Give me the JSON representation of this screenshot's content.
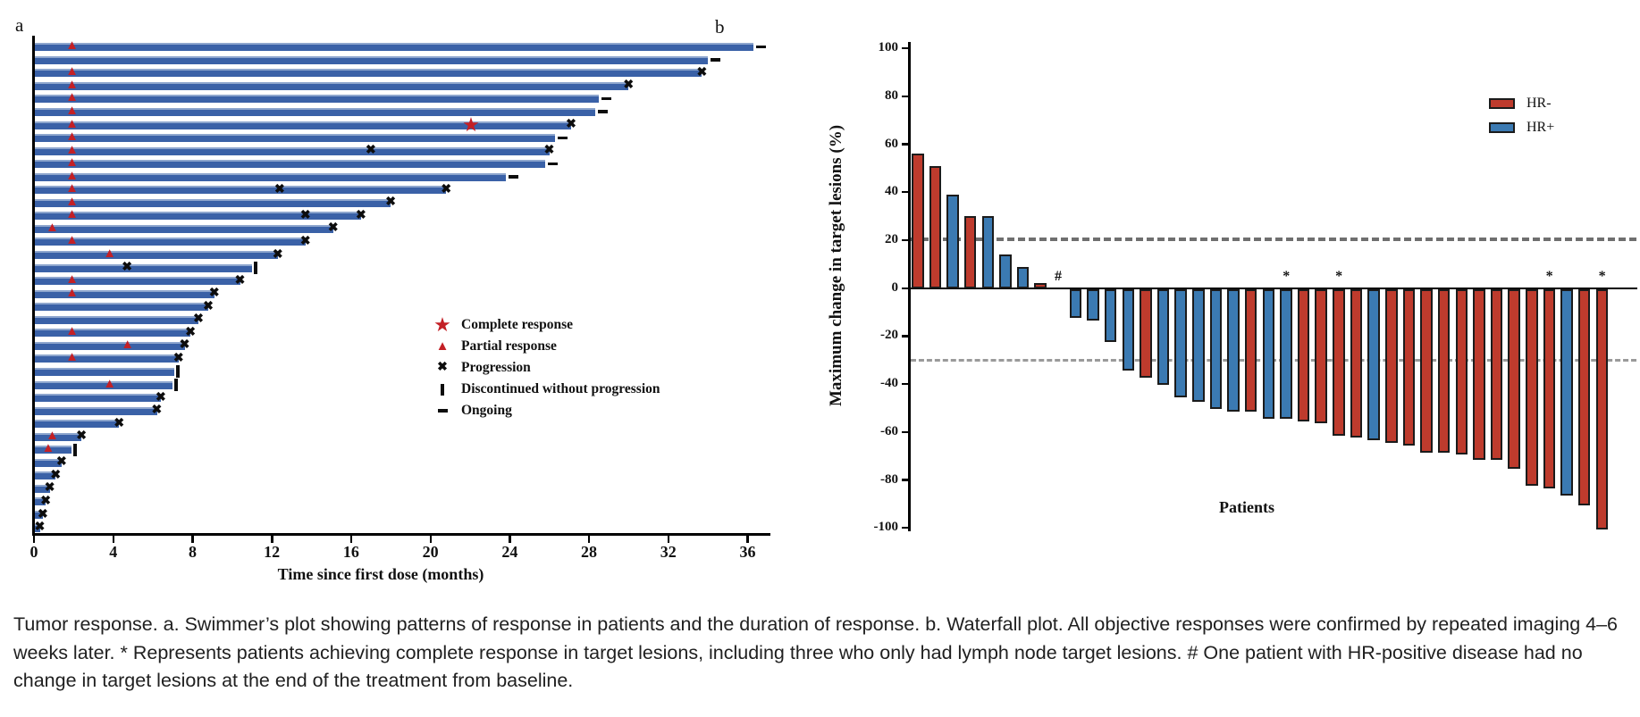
{
  "colors": {
    "swimmer_bar": "#3a61a7",
    "response_red": "#c32026",
    "hr_negative_red": "#be3b2d",
    "hr_positive_blue": "#3b7ab2",
    "dashed_reference": "#6f6f6f"
  },
  "panel_a": {
    "label": "a",
    "x_axis_title": "Time since first dose (months)",
    "x_ticks": [
      0,
      4,
      8,
      12,
      16,
      20,
      24,
      28,
      32,
      36
    ],
    "legend": [
      {
        "icon": "star",
        "label": "Complete response"
      },
      {
        "icon": "triangle",
        "label": "Partial response"
      },
      {
        "icon": "x",
        "label": "Progression"
      },
      {
        "icon": "bar",
        "label": "Discontinued without progression"
      },
      {
        "icon": "dash",
        "label": "Ongoing"
      }
    ],
    "patients": [
      {
        "m": 36.3,
        "end": "ongoing",
        "mk": [
          {
            "t": "pr",
            "m": 1.9
          }
        ]
      },
      {
        "m": 34.0,
        "end": "ongoing",
        "mk": []
      },
      {
        "m": 33.7,
        "end": "prog",
        "mk": [
          {
            "t": "pr",
            "m": 1.9
          }
        ]
      },
      {
        "m": 30.0,
        "end": "prog",
        "mk": [
          {
            "t": "pr",
            "m": 1.9
          }
        ]
      },
      {
        "m": 28.5,
        "end": "ongoing",
        "mk": [
          {
            "t": "pr",
            "m": 1.9
          }
        ]
      },
      {
        "m": 28.3,
        "end": "ongoing",
        "mk": [
          {
            "t": "pr",
            "m": 1.9
          }
        ]
      },
      {
        "m": 27.1,
        "end": "prog",
        "mk": [
          {
            "t": "pr",
            "m": 1.9
          },
          {
            "t": "cr",
            "m": 22.1
          }
        ]
      },
      {
        "m": 26.3,
        "end": "ongoing",
        "mk": [
          {
            "t": "pr",
            "m": 1.9
          }
        ]
      },
      {
        "m": 26.0,
        "end": "prog",
        "mk": [
          {
            "t": "pr",
            "m": 1.9
          },
          {
            "t": "x",
            "m": 17.0
          }
        ]
      },
      {
        "m": 25.8,
        "end": "ongoing",
        "mk": [
          {
            "t": "pr",
            "m": 1.9
          }
        ]
      },
      {
        "m": 23.8,
        "end": "ongoing",
        "mk": [
          {
            "t": "pr",
            "m": 1.9
          }
        ]
      },
      {
        "m": 20.8,
        "end": "prog",
        "mk": [
          {
            "t": "pr",
            "m": 1.9
          },
          {
            "t": "x",
            "m": 12.4
          }
        ]
      },
      {
        "m": 18.0,
        "end": "prog",
        "mk": [
          {
            "t": "pr",
            "m": 1.9
          }
        ]
      },
      {
        "m": 16.5,
        "end": "prog",
        "mk": [
          {
            "t": "pr",
            "m": 1.9
          },
          {
            "t": "x",
            "m": 13.7
          }
        ]
      },
      {
        "m": 15.1,
        "end": "prog",
        "mk": [
          {
            "t": "pr",
            "m": 0.9
          }
        ]
      },
      {
        "m": 13.7,
        "end": "prog",
        "mk": [
          {
            "t": "pr",
            "m": 1.9
          }
        ]
      },
      {
        "m": 12.3,
        "end": "prog",
        "mk": [
          {
            "t": "pr",
            "m": 3.8
          }
        ]
      },
      {
        "m": 11.0,
        "end": "disc",
        "mk": [
          {
            "t": "x",
            "m": 4.7
          }
        ]
      },
      {
        "m": 10.4,
        "end": "prog",
        "mk": [
          {
            "t": "pr",
            "m": 1.9
          }
        ]
      },
      {
        "m": 9.1,
        "end": "prog",
        "mk": [
          {
            "t": "pr",
            "m": 1.9
          }
        ]
      },
      {
        "m": 8.8,
        "end": "prog",
        "mk": []
      },
      {
        "m": 8.3,
        "end": "prog",
        "mk": []
      },
      {
        "m": 7.9,
        "end": "prog",
        "mk": [
          {
            "t": "pr",
            "m": 1.9
          }
        ]
      },
      {
        "m": 7.6,
        "end": "prog",
        "mk": [
          {
            "t": "pr",
            "m": 4.7
          }
        ]
      },
      {
        "m": 7.3,
        "end": "prog",
        "mk": [
          {
            "t": "pr",
            "m": 1.9
          }
        ]
      },
      {
        "m": 7.1,
        "end": "disc",
        "mk": []
      },
      {
        "m": 7.0,
        "end": "disc",
        "mk": [
          {
            "t": "pr",
            "m": 3.8
          }
        ]
      },
      {
        "m": 6.4,
        "end": "prog",
        "mk": []
      },
      {
        "m": 6.2,
        "end": "prog",
        "mk": []
      },
      {
        "m": 4.3,
        "end": "prog",
        "mk": []
      },
      {
        "m": 2.4,
        "end": "prog",
        "mk": [
          {
            "t": "pr",
            "m": 0.9
          }
        ]
      },
      {
        "m": 1.9,
        "end": "disc",
        "mk": [
          {
            "t": "pr",
            "m": 0.7
          }
        ]
      },
      {
        "m": 1.4,
        "end": "prog",
        "mk": []
      },
      {
        "m": 1.1,
        "end": "prog",
        "mk": []
      },
      {
        "m": 0.8,
        "end": "prog",
        "mk": []
      },
      {
        "m": 0.6,
        "end": "prog",
        "mk": []
      },
      {
        "m": 0.45,
        "end": "prog",
        "mk": []
      },
      {
        "m": 0.3,
        "end": "prog",
        "mk": []
      }
    ]
  },
  "panel_b": {
    "label": "b",
    "y_axis_title": "Maximum change in target lesions (%)",
    "x_axis_title": "Patients",
    "y_ticks": [
      100,
      80,
      60,
      40,
      20,
      0,
      -20,
      -40,
      -60,
      -80,
      -100
    ],
    "reference_lines": [
      20,
      -30
    ],
    "legend": [
      {
        "swatch": "hr_negative_red",
        "label": "HR-"
      },
      {
        "swatch": "hr_positive_blue",
        "label": "HR+"
      }
    ],
    "patients": [
      {
        "v": 56,
        "hr": "-"
      },
      {
        "v": 51,
        "hr": "-"
      },
      {
        "v": 39,
        "hr": "+"
      },
      {
        "v": 30,
        "hr": "-"
      },
      {
        "v": 30,
        "hr": "+"
      },
      {
        "v": 14,
        "hr": "+"
      },
      {
        "v": 9,
        "hr": "+"
      },
      {
        "v": 2,
        "hr": "-"
      },
      {
        "v": 0,
        "hr": "+",
        "note": "#"
      },
      {
        "v": -12,
        "hr": "+"
      },
      {
        "v": -13,
        "hr": "+"
      },
      {
        "v": -22,
        "hr": "+"
      },
      {
        "v": -34,
        "hr": "+"
      },
      {
        "v": -37,
        "hr": "-"
      },
      {
        "v": -40,
        "hr": "+"
      },
      {
        "v": -45,
        "hr": "+"
      },
      {
        "v": -47,
        "hr": "+"
      },
      {
        "v": -50,
        "hr": "+"
      },
      {
        "v": -51,
        "hr": "+"
      },
      {
        "v": -51,
        "hr": "-"
      },
      {
        "v": -54,
        "hr": "+"
      },
      {
        "v": -54,
        "hr": "+",
        "note": "*"
      },
      {
        "v": -55,
        "hr": "-"
      },
      {
        "v": -56,
        "hr": "-"
      },
      {
        "v": -61,
        "hr": "-",
        "note": "*"
      },
      {
        "v": -62,
        "hr": "-"
      },
      {
        "v": -63,
        "hr": "+"
      },
      {
        "v": -64,
        "hr": "-"
      },
      {
        "v": -65,
        "hr": "-"
      },
      {
        "v": -68,
        "hr": "-"
      },
      {
        "v": -68,
        "hr": "-"
      },
      {
        "v": -69,
        "hr": "-"
      },
      {
        "v": -71,
        "hr": "-"
      },
      {
        "v": -71,
        "hr": "-"
      },
      {
        "v": -75,
        "hr": "-"
      },
      {
        "v": -82,
        "hr": "-"
      },
      {
        "v": -83,
        "hr": "-",
        "note": "*"
      },
      {
        "v": -86,
        "hr": "+"
      },
      {
        "v": -90,
        "hr": "-"
      },
      {
        "v": -100,
        "hr": "-",
        "note": "*"
      }
    ]
  },
  "chart_data": [
    {
      "type": "bar",
      "title": "Swimmer's plot — duration of treatment per patient",
      "xlabel": "Time since first dose (months)",
      "xlim": [
        0,
        38
      ],
      "orientation": "horizontal",
      "values": [
        36.3,
        34.0,
        33.7,
        30.0,
        28.5,
        28.3,
        27.1,
        26.3,
        26.0,
        25.8,
        23.8,
        20.8,
        18.0,
        16.5,
        15.1,
        13.7,
        12.3,
        11.0,
        10.4,
        9.1,
        8.8,
        8.3,
        7.9,
        7.6,
        7.3,
        7.1,
        7.0,
        6.4,
        6.2,
        4.3,
        2.4,
        1.9,
        1.4,
        1.1,
        0.8,
        0.6,
        0.45,
        0.3
      ],
      "legend_entries": [
        "Complete response",
        "Partial response",
        "Progression",
        "Discontinued without progression",
        "Ongoing"
      ]
    },
    {
      "type": "bar",
      "title": "Waterfall plot — maximum change in target lesions",
      "xlabel": "Patients",
      "ylabel": "Maximum change in target lesions (%)",
      "ylim": [
        -100,
        100
      ],
      "reference_lines": [
        20,
        -30
      ],
      "series": [
        {
          "name": "HR-",
          "color": "#be3b2d"
        },
        {
          "name": "HR+",
          "color": "#3b7ab2"
        }
      ],
      "values": [
        56,
        51,
        39,
        30,
        30,
        14,
        9,
        2,
        0,
        -12,
        -13,
        -22,
        -34,
        -37,
        -40,
        -45,
        -47,
        -50,
        -51,
        -51,
        -54,
        -54,
        -55,
        -56,
        -61,
        -62,
        -63,
        -64,
        -65,
        -68,
        -68,
        -69,
        -71,
        -71,
        -75,
        -82,
        -83,
        -86,
        -90,
        -100
      ],
      "hr_status": [
        "-",
        "-",
        "+",
        "-",
        "+",
        "+",
        "+",
        "-",
        "+",
        "+",
        "+",
        "+",
        "+",
        "-",
        "+",
        "+",
        "+",
        "+",
        "+",
        "-",
        "+",
        "+",
        "-",
        "-",
        "-",
        "-",
        "+",
        "-",
        "-",
        "-",
        "-",
        "-",
        "-",
        "-",
        "-",
        "-",
        "-",
        "+",
        "-",
        "-"
      ],
      "annotations": {
        "asterisk_patient_indices": [
          21,
          24,
          36,
          39
        ],
        "hash_patient_index": 8
      }
    }
  ],
  "caption": "Tumor response. a. Swimmer’s plot showing patterns of response in patients and the duration of response. b. Waterfall plot. All objective responses were confirmed by repeated imaging 4–6 weeks later. * Represents patients achieving complete response in target lesions, including three who only had lymph node target lesions. # One patient with HR-positive disease had no change in target lesions at the end of the treatment from baseline."
}
